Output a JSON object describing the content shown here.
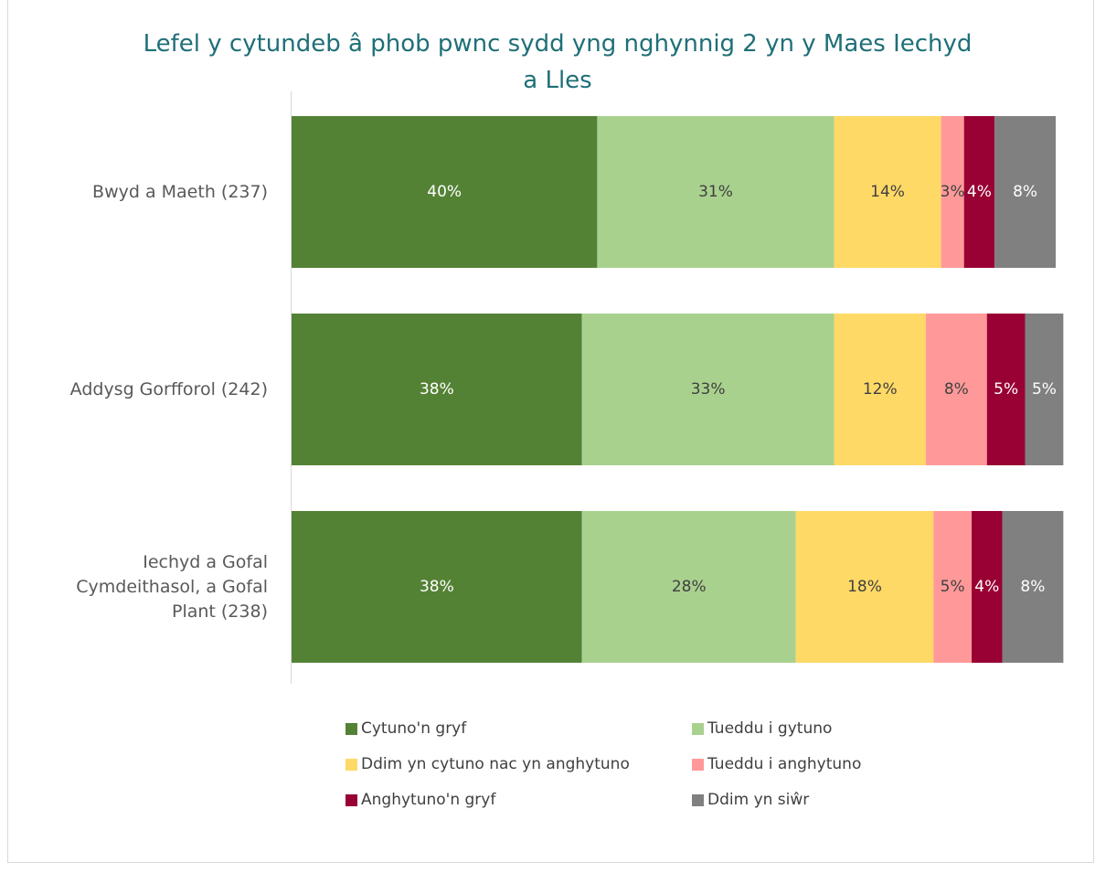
{
  "chart_data": {
    "type": "stacked-bar-horizontal",
    "title": "Lefel y cytundeb â phob pwnc sydd yng nghynnig 2 yn y Maes Iechyd a Lles",
    "categories": [
      "Bwyd a Maeth (237)",
      "Addysg Gorfforol (242)",
      "Iechyd a Gofal Cymdeithasol, a Gofal Plant (238)"
    ],
    "xlim": [
      0,
      100
    ],
    "legend": "bottom",
    "series": [
      {
        "name": "Cytuno'n gryf",
        "color": "#548235",
        "values": [
          40,
          38,
          38
        ],
        "value_labels": [
          "40%",
          "38%",
          "38%"
        ]
      },
      {
        "name": "Tueddu i gytuno",
        "color": "#a9d18e",
        "values": [
          31,
          33,
          28
        ],
        "value_labels": [
          "31%",
          "33%",
          "28%"
        ]
      },
      {
        "name": "Ddim yn cytuno nac yn anghytuno",
        "color": "#ffd966",
        "values": [
          14,
          12,
          18
        ],
        "value_labels": [
          "14%",
          "12%",
          "18%"
        ]
      },
      {
        "name": "Tueddu i anghytuno",
        "color": "#ff9999",
        "values": [
          3,
          8,
          5
        ],
        "value_labels": [
          "3%",
          "8%",
          "5%"
        ]
      },
      {
        "name": "Anghytuno'n gryf",
        "color": "#990033",
        "values": [
          4,
          5,
          4
        ],
        "value_labels": [
          "4%",
          "5%",
          "4%"
        ]
      },
      {
        "name": "Ddim yn siŵr",
        "color": "#808080",
        "values": [
          8,
          5,
          8
        ],
        "value_labels": [
          "8%",
          "5%",
          "8%"
        ]
      }
    ]
  }
}
